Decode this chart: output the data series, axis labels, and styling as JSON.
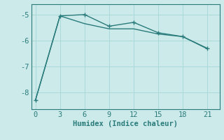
{
  "xlabel": "Humidex (Indice chaleur)",
  "line1": {
    "x": [
      0,
      3,
      6,
      9,
      12,
      15,
      18,
      21
    ],
    "y": [
      -8.3,
      -5.05,
      -5.0,
      -5.45,
      -5.3,
      -5.7,
      -5.85,
      -6.3
    ],
    "color": "#2a7b7b",
    "marker": "+",
    "markersize": 4,
    "linewidth": 1.0
  },
  "line2": {
    "x": [
      0,
      3,
      6,
      9,
      12,
      15,
      18,
      21
    ],
    "y": [
      -8.3,
      -5.05,
      -5.35,
      -5.55,
      -5.55,
      -5.75,
      -5.85,
      -6.32
    ],
    "color": "#2a7b7b",
    "linewidth": 1.0
  },
  "xlim": [
    -0.5,
    22.5
  ],
  "ylim": [
    -8.65,
    -4.6
  ],
  "xticks": [
    0,
    3,
    6,
    9,
    12,
    15,
    18,
    21
  ],
  "yticks": [
    -8,
    -7,
    -6,
    -5
  ],
  "grid_color": "#aad8d8",
  "bg_color": "#cceaea",
  "tick_color": "#2a7b7b",
  "label_color": "#2a7b7b",
  "spine_color": "#2a7b7b",
  "font_size": 7.5
}
